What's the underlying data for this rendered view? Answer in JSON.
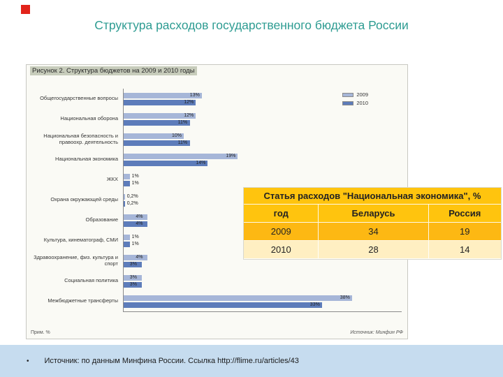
{
  "slide": {
    "title": "Структура расходов государственного бюджета России",
    "footer": {
      "bullet": "•",
      "text": "Источник:  по данным Минфина России. Ссылка  http://flime.ru/articles/43"
    }
  },
  "figure": {
    "caption": "Рисунок 2. Структура бюджетов на 2009 и 2010 годы",
    "footnote_left": "Прим. %",
    "footnote_right": "Источник: Минфин РФ"
  },
  "chart_data": {
    "type": "bar",
    "orientation": "horizontal",
    "title": "Рисунок 2. Структура бюджетов на 2009 и 2010 годы",
    "xlabel": "",
    "ylabel": "",
    "xlim": [
      0,
      40
    ],
    "grid": false,
    "legend_position": "top-right",
    "value_suffix": "%",
    "categories": [
      "Общегосударственные вопросы",
      "Национальная оборона",
      "Национальная безопасность и правоохр. деятельность",
      "Национальная экономика",
      "ЖКХ",
      "Охрана окружающей среды",
      "Образование",
      "Культура, кинематограф, СМИ",
      "Здравоохранение, физ. культура и спорт",
      "Социальная политика",
      "Межбюджетные трансферты"
    ],
    "series": [
      {
        "name": "2009",
        "color": "#a6b6d8",
        "values": [
          13,
          12,
          10,
          19,
          1,
          0.2,
          4,
          1,
          4,
          3,
          38
        ],
        "labels": [
          "13%",
          "12%",
          "10%",
          "19%",
          "1%",
          "0,2%",
          "4%",
          "1%",
          "4%",
          "3%",
          "38%"
        ]
      },
      {
        "name": "2010",
        "color": "#5d7cba",
        "values": [
          12,
          11,
          11,
          14,
          1,
          0.2,
          4,
          1,
          3,
          3,
          33
        ],
        "labels": [
          "12%",
          "11%",
          "11%",
          "14%",
          "1%",
          "0,2%",
          "4%",
          "1%",
          "3%",
          "3%",
          "33%"
        ]
      }
    ]
  },
  "table": {
    "title": "Статья расходов \"Национальная экономика\", %",
    "columns": [
      "год",
      "Беларусь",
      "Россия"
    ],
    "rows": [
      [
        "2009",
        "34",
        "19"
      ],
      [
        "2010",
        "28",
        "14"
      ]
    ]
  },
  "colors": {
    "title_text": "#2e9c92",
    "footer_bg": "#c6dcef",
    "marker_red": "#e2231a",
    "table_header_bg": "#ffc40e",
    "table_row_2009_bg": "#fdb813",
    "table_row_2010_bg": "#ffefc2",
    "bar_2009": "#a6b6d8",
    "bar_2010": "#5d7cba"
  }
}
